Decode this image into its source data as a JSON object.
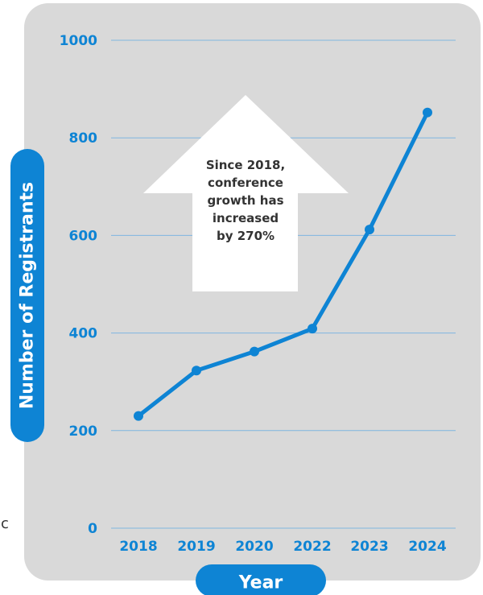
{
  "chart_data": {
    "type": "line",
    "title": "",
    "xlabel": "Year",
    "ylabel": "Number of Registrants",
    "categories": [
      "2018",
      "2019",
      "2020",
      "2022",
      "2023",
      "2024"
    ],
    "series": [
      {
        "values": [
          230,
          323,
          362,
          409,
          612,
          852
        ]
      }
    ],
    "ylim": [
      0,
      1000
    ],
    "yticks": [
      0,
      200,
      400,
      600,
      800,
      1000
    ],
    "ytick_labels": [
      "0",
      "200",
      "400",
      "600",
      "800",
      "1000"
    ],
    "grid": true,
    "annotation": {
      "lines": [
        "Since 2018,",
        "conference",
        "growth has",
        "increased",
        "by 270%"
      ]
    },
    "colors": {
      "accent": "#0e84d4",
      "panel": "#d9d9d9",
      "grid": "#7fb6e0",
      "arrow_fill": "#ffffff",
      "annotation_text": "#333333"
    }
  },
  "edge_text": "c"
}
